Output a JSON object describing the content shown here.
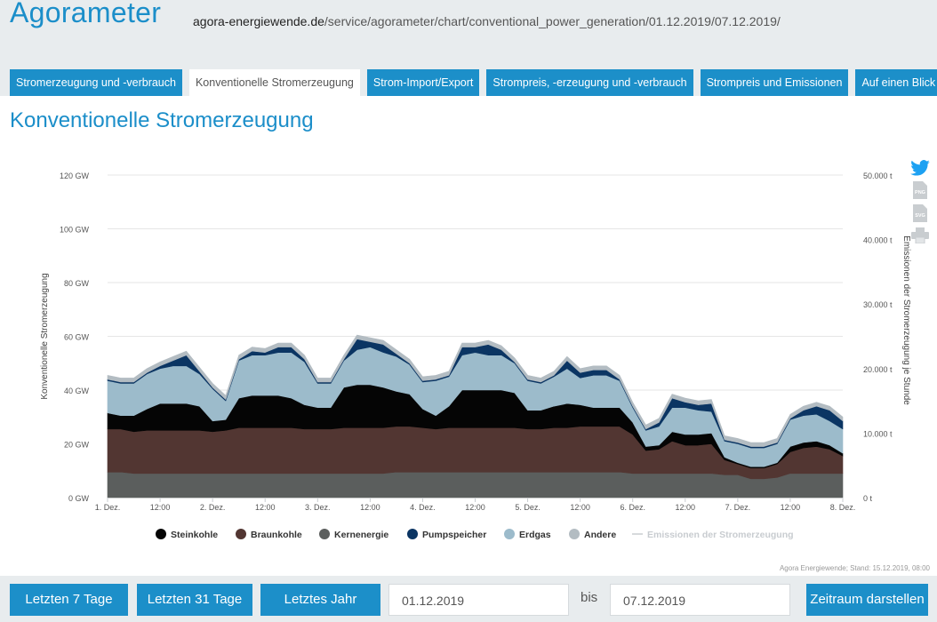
{
  "header": {
    "app_title": "Agorameter",
    "url_domain": "agora-energiewende.de",
    "url_path": "/service/agorameter/chart/conventional_power_generation/01.12.2019/07.12.2019/"
  },
  "tabs": [
    {
      "label": "Stromerzeugung und -verbrauch",
      "active": false
    },
    {
      "label": "Konventionelle Stromerzeugung",
      "active": true
    },
    {
      "label": "Strom-Import/Export",
      "active": false
    },
    {
      "label": "Strompreis, -erzeugung und -verbrauch",
      "active": false
    },
    {
      "label": "Strompreis und Emissionen",
      "active": false
    },
    {
      "label": "Auf einen Blick",
      "active": false
    }
  ],
  "section_title": "Konventionelle Stromerzeugung",
  "icons": [
    "twitter-icon",
    "png-download-icon",
    "svg-download-icon",
    "print-icon"
  ],
  "icon_labels": {
    "png": "PNG",
    "svg": "SVG"
  },
  "credit": "Agora Energiewende; Stand: 15.12.2019, 08:00",
  "controls": {
    "btn_7": "Letzten 7 Tage",
    "btn_31": "Letzten 31 Tage",
    "btn_year": "Letztes Jahr",
    "from_date": "01.12.2019",
    "bis": "bis",
    "to_date": "07.12.2019",
    "submit": "Zeitraum darstellen"
  },
  "colors": {
    "accent": "#1c8fc9",
    "Kernenergie": "#5b5e5d",
    "Braunkohle": "#523632",
    "Steinkohle": "#050505",
    "Erdgas": "#9cbbcb",
    "Pumpspeicher": "#0b3563",
    "Andere": "#b3bcc2",
    "Emissionen": "#d7dadc"
  },
  "chart_data": {
    "type": "area",
    "stacked": true,
    "title": "",
    "ylabel": "Konventionelle Stromerzeugung",
    "y2label": "Emissionen der Stromerzeugung je Stunde",
    "ylim": [
      0,
      120
    ],
    "y2lim": [
      0,
      50000
    ],
    "yticks": [
      "0 GW",
      "20 GW",
      "40 GW",
      "60 GW",
      "80 GW",
      "100 GW",
      "120 GW"
    ],
    "y2ticks": [
      "0 t",
      "10.000 t",
      "20.000 t",
      "30.000 t",
      "40.000 t",
      "50.000 t"
    ],
    "xlim": [
      0,
      168
    ],
    "xticks": [
      {
        "h": 0,
        "label": "1. Dez."
      },
      {
        "h": 12,
        "label": "12:00"
      },
      {
        "h": 24,
        "label": "2. Dez."
      },
      {
        "h": 36,
        "label": "12:00"
      },
      {
        "h": 48,
        "label": "3. Dez."
      },
      {
        "h": 60,
        "label": "12:00"
      },
      {
        "h": 72,
        "label": "4. Dez."
      },
      {
        "h": 84,
        "label": "12:00"
      },
      {
        "h": 96,
        "label": "5. Dez."
      },
      {
        "h": 108,
        "label": "12:00"
      },
      {
        "h": 120,
        "label": "6. Dez."
      },
      {
        "h": 132,
        "label": "12:00"
      },
      {
        "h": 144,
        "label": "7. Dez."
      },
      {
        "h": 156,
        "label": "12:00"
      },
      {
        "h": 168,
        "label": "8. Dez."
      }
    ],
    "grid": true,
    "legend_position": "bottom",
    "legend": [
      "Steinkohle",
      "Braunkohle",
      "Kernenergie",
      "Pumpspeicher",
      "Erdgas",
      "Andere",
      "Emissionen der Stromerzeugung"
    ],
    "x_hours": [
      0,
      3,
      6,
      9,
      12,
      15,
      18,
      21,
      24,
      27,
      30,
      33,
      36,
      39,
      42,
      45,
      48,
      51,
      54,
      57,
      60,
      63,
      66,
      69,
      72,
      75,
      78,
      81,
      84,
      87,
      90,
      93,
      96,
      99,
      102,
      105,
      108,
      111,
      114,
      117,
      120,
      123,
      126,
      129,
      132,
      135,
      138,
      141,
      144,
      147,
      150,
      153,
      156,
      159,
      162,
      165,
      168
    ],
    "series": [
      {
        "name": "Kernenergie",
        "values": [
          9.5,
          9.5,
          9,
          9,
          9,
          9,
          9,
          9,
          9,
          9,
          9,
          9,
          9,
          9,
          9,
          9,
          9,
          9,
          9,
          9,
          9,
          9,
          9.5,
          9.5,
          9.5,
          9.5,
          9.5,
          9.5,
          9.5,
          9.5,
          9.5,
          9.5,
          9.5,
          9.5,
          9.5,
          9.5,
          9.5,
          9.5,
          9.5,
          9.5,
          9,
          9,
          9,
          9,
          9,
          9,
          9,
          8.5,
          8.5,
          7,
          7,
          7.5,
          9,
          9,
          9,
          9,
          9
        ]
      },
      {
        "name": "Braunkohle",
        "values": [
          16,
          16,
          15.5,
          16,
          16,
          16,
          16,
          16,
          15.5,
          16,
          17,
          17,
          17,
          17,
          17,
          16.5,
          16.5,
          16.5,
          17,
          17,
          17,
          17,
          17,
          17,
          16.5,
          16,
          16.5,
          16.5,
          16.5,
          16.5,
          16.5,
          16.5,
          16,
          16,
          16.5,
          16.5,
          17,
          17,
          17,
          17,
          14.5,
          8.5,
          9,
          12,
          10.5,
          10.5,
          11,
          5.5,
          4,
          4,
          4,
          5,
          8,
          9.5,
          10,
          9,
          6.5
        ]
      },
      {
        "name": "Steinkohle",
        "values": [
          6,
          5,
          6,
          8,
          10,
          10,
          10,
          9,
          4,
          4,
          11,
          12,
          12,
          12,
          11,
          9,
          8,
          8,
          15,
          16,
          16,
          15,
          13,
          12,
          7,
          5,
          8,
          14,
          14,
          14,
          14,
          13,
          7,
          7,
          8,
          9,
          8,
          7,
          7,
          7,
          4.5,
          1.5,
          1.5,
          3.5,
          4,
          4,
          4,
          1,
          0.5,
          0.5,
          0.5,
          0.5,
          2,
          2,
          2,
          1.5,
          1
        ]
      },
      {
        "name": "Erdgas",
        "values": [
          12,
          12,
          12,
          13,
          13,
          14,
          14,
          12,
          12,
          7,
          14,
          15,
          15,
          16,
          17,
          16,
          9,
          9,
          10,
          13,
          14,
          13,
          13,
          11,
          10,
          13,
          11,
          13,
          14,
          13,
          13,
          11,
          11,
          10,
          11,
          13,
          10,
          12,
          12,
          10,
          5.5,
          6,
          7,
          9,
          10,
          9,
          8,
          6,
          7,
          7,
          7,
          7,
          10,
          10,
          10,
          9,
          9
        ]
      },
      {
        "name": "Pumpspeicher",
        "values": [
          0.5,
          0.5,
          0.5,
          0.5,
          1,
          2,
          4,
          1,
          0.5,
          0.5,
          0.5,
          1.5,
          1,
          2,
          2,
          1,
          0.5,
          0.5,
          0.5,
          4,
          2,
          3,
          1,
          0.5,
          0.5,
          0.5,
          0.5,
          3,
          2,
          4,
          2,
          0.5,
          0.5,
          0.5,
          0.5,
          3,
          2,
          2,
          2,
          0.5,
          0.5,
          0.5,
          1.5,
          3.5,
          2,
          2,
          3,
          0.5,
          0.5,
          0.5,
          0.5,
          0.5,
          0.5,
          2,
          3,
          4,
          3
        ]
      },
      {
        "name": "Andere",
        "values": [
          1.5,
          1.5,
          1.5,
          1.5,
          1.5,
          1.5,
          1.5,
          1.5,
          1.5,
          1.5,
          1.5,
          1.5,
          1.5,
          1.5,
          1.5,
          1.5,
          1.5,
          1.5,
          1.5,
          1.5,
          1.5,
          1.5,
          1.5,
          1.5,
          1.5,
          1.5,
          1.5,
          1.5,
          1.5,
          1.5,
          1.5,
          1.5,
          1.5,
          1.5,
          1.5,
          1.5,
          1.5,
          1.5,
          1.5,
          1.5,
          1.5,
          1.5,
          1.5,
          1.5,
          1.5,
          1.5,
          1.5,
          1.5,
          1.5,
          1.5,
          1.5,
          1.5,
          1.5,
          1.5,
          1.5,
          1.5,
          1.5
        ]
      }
    ]
  }
}
